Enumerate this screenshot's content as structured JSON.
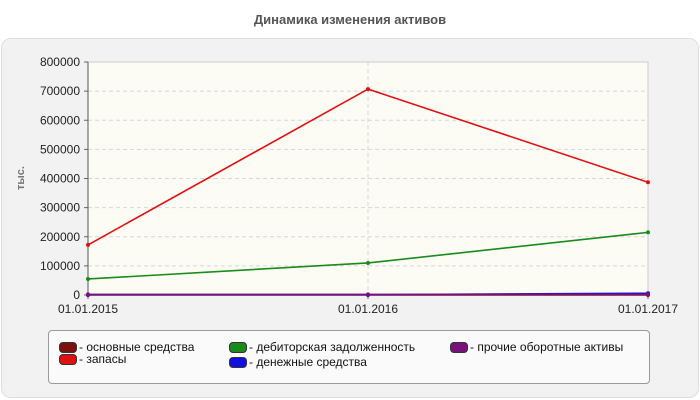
{
  "chart_data": {
    "type": "line",
    "title": "Динамика изменения активов",
    "ylabel": "тыс.",
    "xlabel": "",
    "x": [
      "01.01.2015",
      "01.01.2016",
      "01.01.2017"
    ],
    "ylim": [
      0,
      800000
    ],
    "yticks": [
      "0",
      "100000",
      "200000",
      "300000",
      "400000",
      "500000",
      "600000",
      "700000",
      "800000"
    ],
    "grid": true,
    "legend_position": "bottom",
    "series": [
      {
        "name": "основные средства",
        "color": "#7a1010",
        "values": [
          0,
          0,
          0
        ]
      },
      {
        "name": "запасы",
        "color": "#e01010",
        "values": [
          172000,
          707000,
          387000
        ]
      },
      {
        "name": "дебиторская задолженность",
        "color": "#1a8a1a",
        "values": [
          55000,
          110000,
          215000
        ]
      },
      {
        "name": "денежные средства",
        "color": "#1010e0",
        "values": [
          1000,
          1000,
          6000
        ]
      },
      {
        "name": "прочие оборотные активы",
        "color": "#7a107a",
        "values": [
          2000,
          2000,
          2000
        ]
      }
    ]
  }
}
